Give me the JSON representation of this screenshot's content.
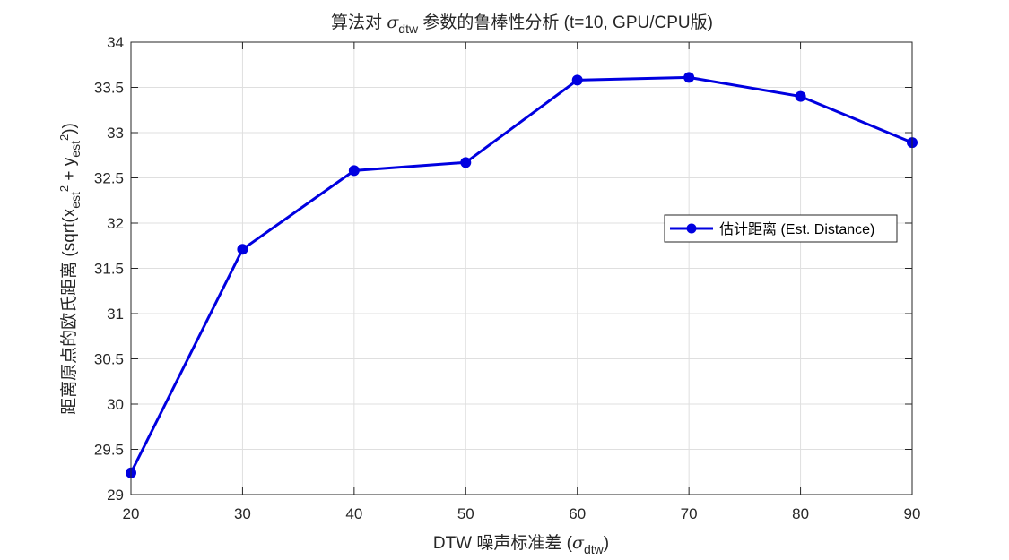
{
  "chart_data": {
    "type": "line",
    "title": {
      "prefix": "算法对 ",
      "symbol": "σ",
      "subscript": "dtw",
      "suffix": " 参数的鲁棒性分析 (t=10, GPU/CPU版)"
    },
    "xlabel": {
      "prefix": "DTW 噪声标准差 (",
      "symbol": "σ",
      "subscript": "dtw",
      "suffix": ")"
    },
    "ylabel": {
      "part1": "距离原点的欧氏距离 (sqrt(x",
      "sub1": "est",
      "sup1": "2",
      "part2": " + y",
      "sub2": "est",
      "sup2": "2",
      "part3": "))"
    },
    "x": [
      20,
      30,
      40,
      50,
      60,
      70,
      80,
      90
    ],
    "xlim": [
      20,
      90
    ],
    "ylim": [
      29,
      34
    ],
    "xticks": [
      20,
      30,
      40,
      50,
      60,
      70,
      80,
      90
    ],
    "yticks": [
      29,
      29.5,
      30,
      30.5,
      31,
      31.5,
      32,
      32.5,
      33,
      33.5,
      34
    ],
    "grid": true,
    "legend_position": "right",
    "series": [
      {
        "name": "估计距离 (Est. Distance)",
        "color": "#0000e0",
        "marker": "circle",
        "values": [
          29.24,
          31.71,
          32.58,
          32.67,
          33.58,
          33.61,
          33.4,
          32.89
        ]
      }
    ]
  }
}
